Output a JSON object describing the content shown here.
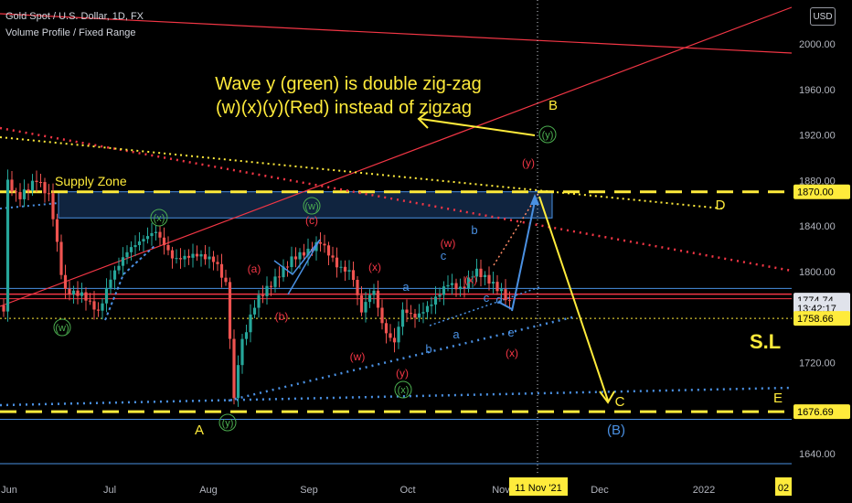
{
  "header": {
    "symbol_line": "Gold Spot / U.S. Dollar, 1D, FX",
    "indicator_line": "Volume Profile / Fixed Range",
    "currency_button": "USD"
  },
  "chart_data": {
    "type": "candlestick",
    "y_axis": {
      "ticks": [
        2000,
        1960,
        1920,
        1880,
        1840,
        1800,
        1760,
        1720,
        1680,
        1640
      ],
      "tick_labels": [
        "2000.00",
        "1960.00",
        "1920.00",
        "1880.00",
        "1840.00",
        "1800.00",
        "1760.00",
        "1720.00",
        "1680.00",
        "1640.00"
      ],
      "ylim": [
        1628,
        2032
      ]
    },
    "x_axis": {
      "labels": [
        "Jun",
        "Jul",
        "Aug",
        "Sep",
        "Oct",
        "Nov",
        "Dec",
        "2022"
      ]
    },
    "price_labels": [
      {
        "text": "1870.00",
        "value": 1870.0,
        "bg": "#ffeb3b",
        "fg": "#000000"
      },
      {
        "text": "1774.74",
        "value": 1774.74,
        "bg": "#e0e3eb",
        "fg": "#000000"
      },
      {
        "text": "13:42:17",
        "value": 1767.5,
        "bg": "#e0e3eb",
        "fg": "#000000"
      },
      {
        "text": "1758.66",
        "value": 1758.66,
        "bg": "#ffeb3b",
        "fg": "#000000"
      },
      {
        "text": "1676.69",
        "value": 1676.69,
        "bg": "#ffeb3b",
        "fg": "#000000"
      }
    ],
    "cursor_date_label": "11 Nov '21",
    "corner_label": "02",
    "annotations": {
      "title_line1": "Wave y (green) is double zig-zag",
      "title_line2": "(w)(x)(y)(Red) instead of zigzag",
      "supply_zone": "Supply Zone",
      "stop_loss": "S.L",
      "letters": [
        "A",
        "B",
        "C",
        "D",
        "E",
        "(B)"
      ],
      "wave_labels_red": [
        "(a)",
        "(b)",
        "(c)",
        "(w)",
        "(x)",
        "(y)",
        "(w)",
        "(x)",
        "(y)",
        "(x)"
      ],
      "wave_labels_green": [
        "(w)",
        "(x)",
        "(y)",
        "(w)",
        "(x)",
        "(y)"
      ],
      "wave_labels_blue": [
        "a",
        "b",
        "c",
        "a",
        "b",
        "c",
        "d",
        "e"
      ]
    },
    "colors": {
      "background": "#000000",
      "up": "#26a69a",
      "down": "#ef5350",
      "yellow": "#ffeb3b",
      "blue": "#4a90e2",
      "red": "#f23645",
      "green": "#4caf50"
    }
  }
}
